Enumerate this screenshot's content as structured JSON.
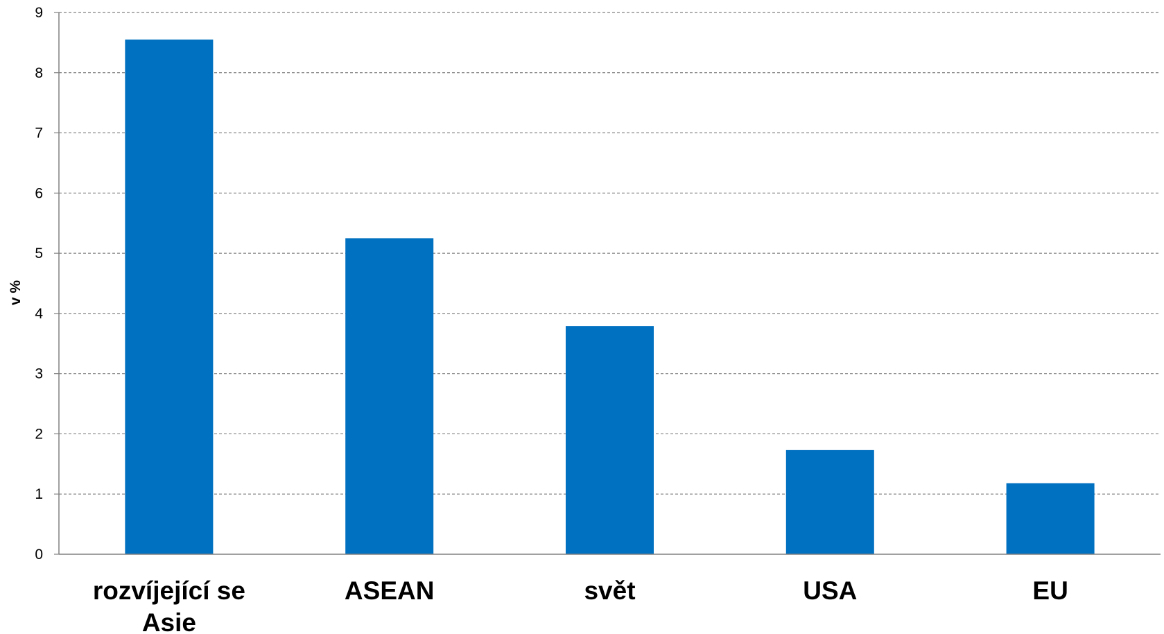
{
  "chart_data": {
    "type": "bar",
    "categories": [
      [
        "rozvíjející se",
        "Asie"
      ],
      [
        "ASEAN"
      ],
      [
        "svět"
      ],
      [
        "USA"
      ],
      [
        "EU"
      ]
    ],
    "values": [
      8.55,
      5.25,
      3.79,
      1.73,
      1.18
    ],
    "title": "",
    "xlabel": "",
    "ylabel": "v %",
    "ylim": [
      0,
      9
    ],
    "yticks": [
      "0",
      "1",
      "2",
      "3",
      "4",
      "5",
      "6",
      "7",
      "8",
      "9"
    ],
    "grid": true,
    "legend": "none",
    "colors": {
      "bar": "#0070C0",
      "grid": "#808080",
      "axis": "#808080"
    }
  }
}
